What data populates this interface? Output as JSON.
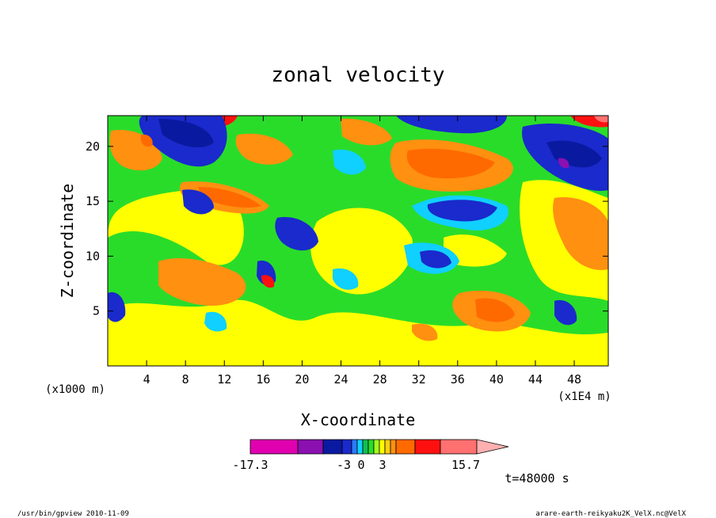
{
  "chart_data": {
    "type": "heatmap",
    "title": "zonal velocity",
    "xlabel": "X-coordinate",
    "ylabel": "Z-coordinate",
    "x_unit_label": "(x1000 m)",
    "x_scale_label": "(x1E4 m)",
    "xlim": [
      0,
      51.5
    ],
    "ylim": [
      0,
      22.8
    ],
    "xticks": [
      4,
      8,
      12,
      16,
      20,
      24,
      28,
      32,
      36,
      40,
      44,
      48
    ],
    "yticks": [
      5,
      10,
      15,
      20
    ],
    "colorbar": {
      "min": -17.3,
      "max": 15.7,
      "labels": [
        "-17.3",
        "-3",
        "0",
        "3",
        "15.7"
      ],
      "colors": [
        "#e000b0",
        "#8a10b0",
        "#0a1aa0",
        "#1a2acc",
        "#2a7aff",
        "#10d0ff",
        "#10c050",
        "#2adc2a",
        "#a0ff20",
        "#ffff00",
        "#ffd010",
        "#ff9010",
        "#ff6a00",
        "#ff1010",
        "#ff7070",
        "#ffb0b0"
      ]
    },
    "annotation": "t=48000 s"
  },
  "footer": {
    "left": "/usr/bin/gpview  2010-11-09",
    "right": "arare-earth-reikyaku2K_VelX.nc@VelX"
  }
}
